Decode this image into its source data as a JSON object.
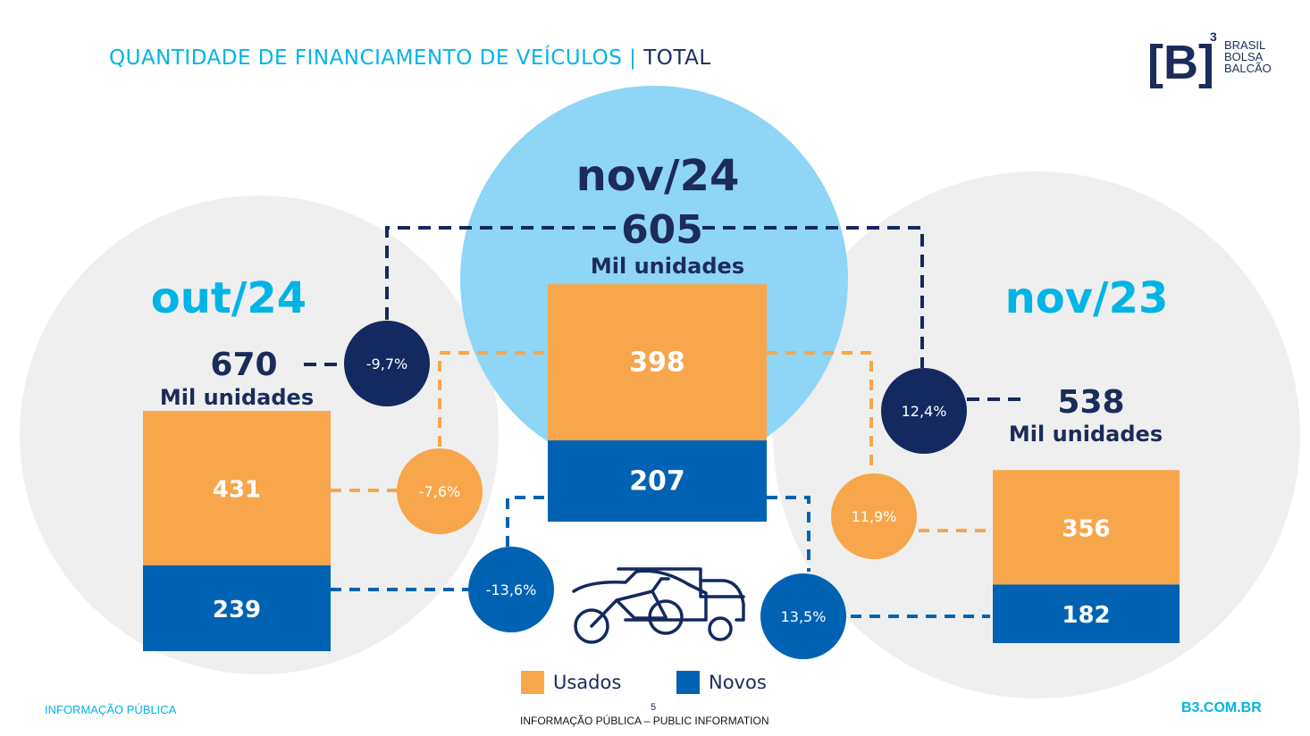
{
  "header": {
    "title": "QUANTIDADE DE FINANCIAMENTO DE VEÍCULOS",
    "separator": "|",
    "title_suffix": "TOTAL"
  },
  "logo": {
    "mark": "[B]",
    "superscript": "3",
    "line1": "BRASIL",
    "line2": "BOLSA",
    "line3": "BALCÃO"
  },
  "colors": {
    "usados": "#f8a64c",
    "novos": "#0062b2",
    "dark_navy": "#1b2c5a",
    "circle_navy": "#13295f",
    "accent_cyan": "#00b4e6",
    "highlight_circle": "#8fd5f6",
    "grey_circle": "#efefef"
  },
  "chart_data": {
    "type": "bar",
    "stacked": true,
    "unit_label": "Mil unidades",
    "categories": [
      "out/24",
      "nov/24",
      "nov/23"
    ],
    "series": [
      {
        "name": "Usados",
        "values": [
          431,
          398,
          356
        ]
      },
      {
        "name": "Novos",
        "values": [
          239,
          207,
          182
        ]
      }
    ],
    "totals": [
      "670",
      "605",
      "538"
    ],
    "segment_labels": {
      "usados": [
        "431",
        "398",
        "356"
      ],
      "novos": [
        "239",
        "207",
        "182"
      ]
    },
    "variations": {
      "vs_prev_month": {
        "total": "-9,7%",
        "usados": "-7,6%",
        "novos": "-13,6%"
      },
      "vs_prev_year": {
        "total": "12,4%",
        "usados": "11,9%",
        "novos": "13,5%"
      }
    },
    "legend": [
      "Usados",
      "Novos"
    ],
    "legend_position": "bottom"
  },
  "footer": {
    "left": "INFORMAÇÃO PÚBLICA",
    "page_number": "5",
    "center": "INFORMAÇÃO PÚBLICA – PUBLIC INFORMATION",
    "right": "B3.COM.BR"
  }
}
